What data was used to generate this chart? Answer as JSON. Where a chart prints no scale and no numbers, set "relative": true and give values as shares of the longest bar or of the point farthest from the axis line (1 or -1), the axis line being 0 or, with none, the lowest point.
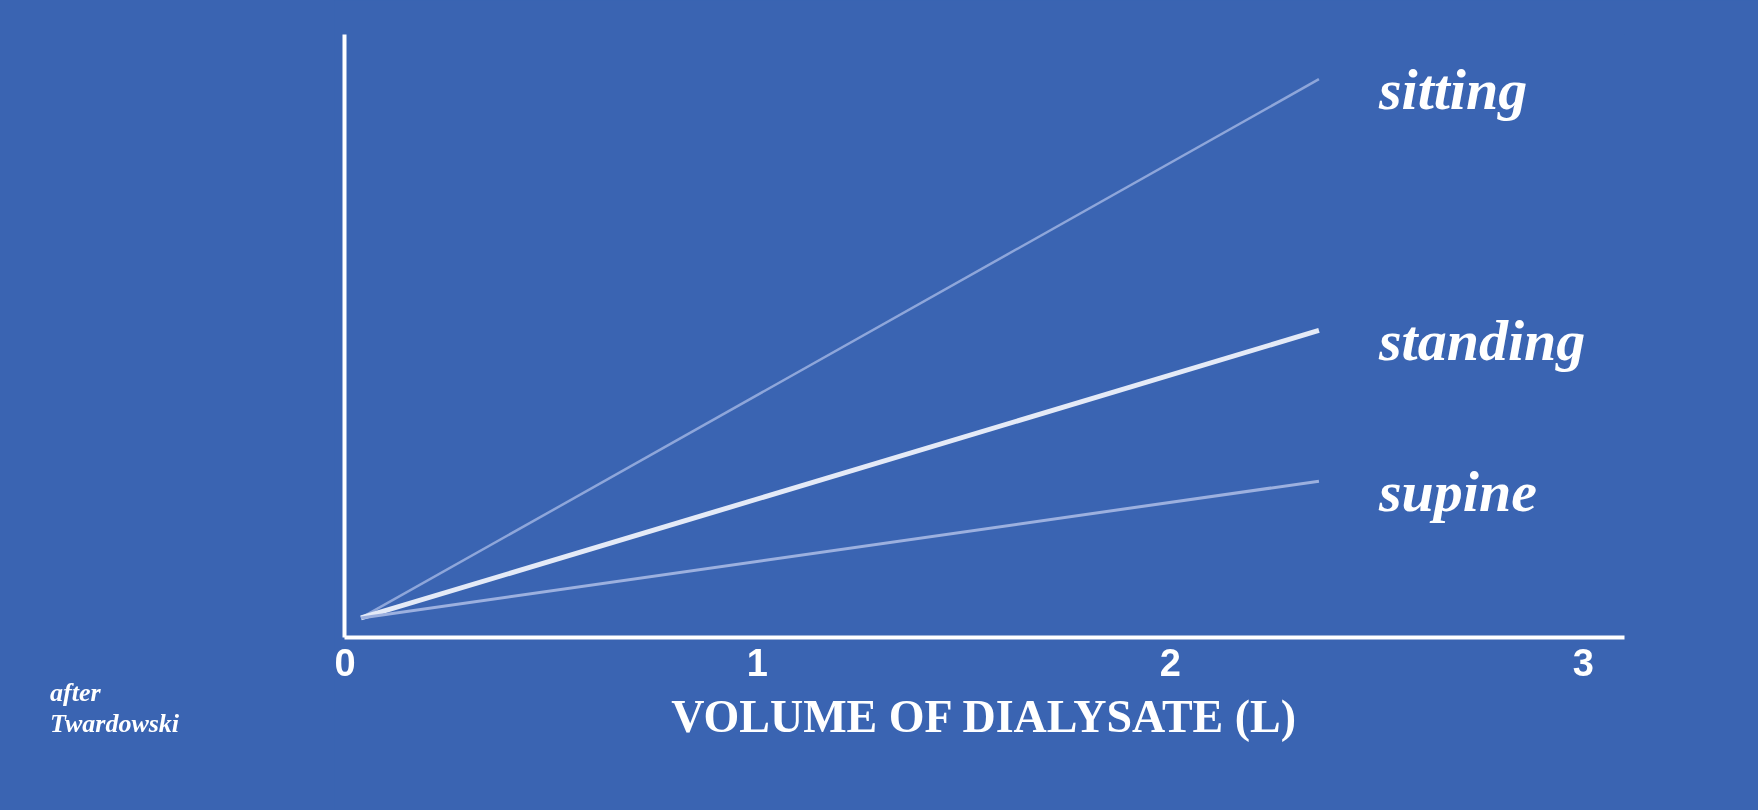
{
  "chart_data": {
    "type": "line",
    "relative": true,
    "xlabel": "VOLUME OF DIALYSATE (L)",
    "x": [
      0.04,
      2.36
    ],
    "xlim": [
      0,
      3.1
    ],
    "xticks": [
      0,
      1,
      2,
      3
    ],
    "grid": false,
    "marker": "none",
    "line_style": "solid",
    "annotations": [
      "after Twardowski"
    ],
    "series": [
      {
        "name": "sitting",
        "color": "#8ea6da",
        "values": [
          0.035,
          1
        ]
      },
      {
        "name": "standing",
        "color": "#e4eaf7",
        "values": [
          0.035,
          0.55
        ]
      },
      {
        "name": "supine",
        "color": "#9cb0df",
        "values": [
          0.035,
          0.28
        ]
      }
    ]
  }
}
